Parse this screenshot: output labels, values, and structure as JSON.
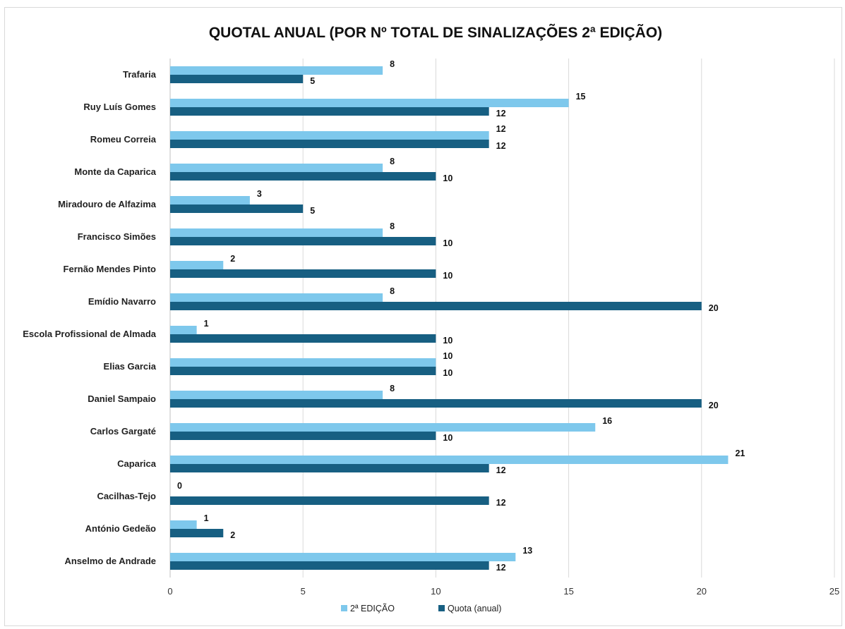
{
  "chart_data": {
    "type": "bar",
    "orientation": "horizontal",
    "title": "QUOTAL ANUAL (POR Nº TOTAL DE SINALIZAÇÕES 2ª EDIÇÃO)",
    "categories": [
      "Trafaria",
      "Ruy Luís Gomes",
      "Romeu Correia",
      "Monte da Caparica",
      "Miradouro de Alfazima",
      "Francisco Simões",
      "Fernão Mendes Pinto",
      "Emídio Navarro",
      "Escola Profissional de Almada",
      "Elias Garcia",
      "Daniel Sampaio",
      "Carlos Gargaté",
      "Caparica",
      "Cacilhas-Tejo",
      "António Gedeão",
      "Anselmo de Andrade"
    ],
    "series": [
      {
        "name": "2ª EDIÇÃO",
        "color": "#7ec8ec",
        "values": [
          8,
          15,
          12,
          8,
          3,
          8,
          2,
          8,
          1,
          10,
          8,
          16,
          21,
          0,
          1,
          13
        ]
      },
      {
        "name": "Quota (anual)",
        "color": "#175f82",
        "values": [
          5,
          12,
          12,
          10,
          5,
          10,
          10,
          20,
          10,
          10,
          20,
          10,
          12,
          12,
          2,
          12
        ]
      }
    ],
    "xlim": [
      0,
      25
    ],
    "xticks": [
      0,
      5,
      10,
      15,
      20,
      25
    ],
    "grid": "vertical",
    "legend": "bottom",
    "data_labels": true
  }
}
